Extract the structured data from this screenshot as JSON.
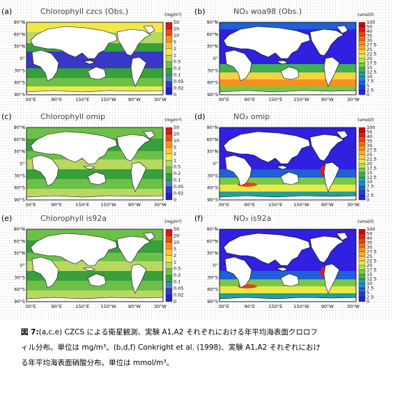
{
  "panels": [
    {
      "label": "(a)",
      "title": "Chlorophyll czcs (Obs.)",
      "unit": "(mg/m³)",
      "kind": "chl",
      "colorbar": [
        "50",
        "20",
        "10",
        "5",
        "2",
        "1",
        "0.5",
        "0.2",
        "0.1",
        "0.05",
        "0.02",
        "0"
      ]
    },
    {
      "label": "(b)",
      "title": "NO₃ woa98 (Obs.)",
      "unit": "(umol/l)",
      "kind": "no3obs",
      "colorbar": [
        "100",
        "50",
        "40",
        "35",
        "30",
        "27.5",
        "25",
        "22.5",
        "20",
        "17.5",
        "15",
        "12.5",
        "10",
        "7.5",
        "5",
        "2.5",
        "0"
      ]
    },
    {
      "label": "(c)",
      "title": "Chlorophyll omip",
      "unit": "(mg/m³)",
      "kind": "chlm",
      "colorbar": [
        "50",
        "20",
        "10",
        "5",
        "2",
        "1",
        "0.5",
        "0.2",
        "0.1",
        "0.05",
        "0.02",
        "0"
      ]
    },
    {
      "label": "(d)",
      "title": "NO₃ omip",
      "unit": "(umol/l)",
      "kind": "no3m",
      "colorbar": [
        "100",
        "50",
        "40",
        "35",
        "30",
        "27.5",
        "25",
        "22.5",
        "20",
        "17.5",
        "15",
        "12.5",
        "10",
        "7.5",
        "5",
        "2.5",
        "0"
      ]
    },
    {
      "label": "(e)",
      "title": "Chlorophyll is92a",
      "unit": "(mg/m³)",
      "kind": "chlm",
      "colorbar": [
        "50",
        "20",
        "10",
        "5",
        "2",
        "1",
        "0.5",
        "0.2",
        "0.1",
        "0.05",
        "0.02",
        "0"
      ]
    },
    {
      "label": "(f)",
      "title": "NO₃ is92a",
      "unit": "(umol/l)",
      "kind": "no3m",
      "colorbar": [
        "100",
        "50",
        "40",
        "35",
        "30",
        "27.5",
        "25",
        "22.5",
        "20",
        "17.5",
        "15",
        "12.5",
        "10",
        "7.5",
        "5",
        "2.5",
        "0"
      ]
    }
  ],
  "lat_ticks": [
    "90°N",
    "60°N",
    "30°N",
    "0°",
    "30°S",
    "60°S",
    "90°S"
  ],
  "lon_ticks": [
    "30°E",
    "90°E",
    "150°E",
    "150°W",
    "90°W",
    "30°W"
  ],
  "colors": {
    "chl": [
      "#d81818",
      "#f04a10",
      "#f89018",
      "#f8c838",
      "#f0e848",
      "#b8d860",
      "#6cc048",
      "#38a03a",
      "#4a86b0",
      "#3838c8",
      "#2020d0",
      "#1818d8"
    ],
    "no3": [
      "#d00000",
      "#e81818",
      "#f04010",
      "#f86818",
      "#f89020",
      "#f8b028",
      "#f8d040",
      "#e8e848",
      "#b8e050",
      "#78c848",
      "#40b050",
      "#20a0a0",
      "#2088d0",
      "#2060d8",
      "#2838e0",
      "#3020e0",
      "#3818e0"
    ]
  },
  "caption": {
    "fig_label": "図 7:",
    "line1": "(a,c,e) CZCS による衛星観測、実験 A1,A2 それぞれにおける年平均海表面クロロフ",
    "line2": "ィル分布。単位は mg/m³。(b,d,f) Conkright et al. (1998)、実験 A1,A2 それぞれにおけ",
    "line3": "る年平均海表面硝酸分布。単位は mmol/m³。"
  }
}
